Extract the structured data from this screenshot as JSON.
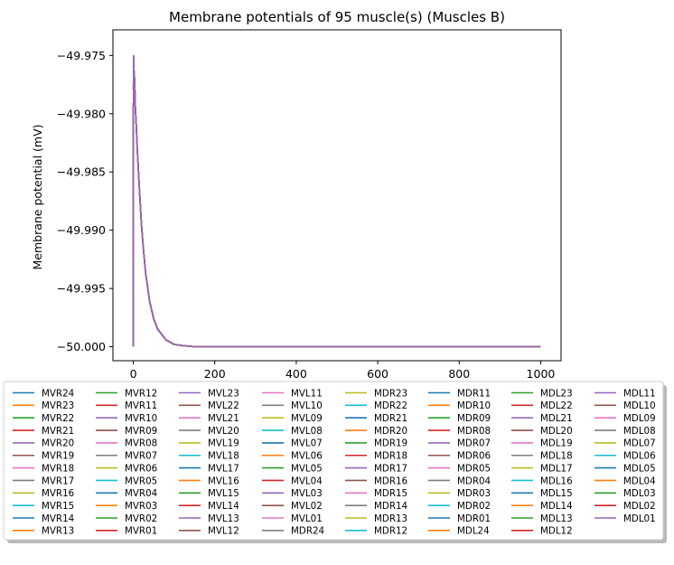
{
  "chart_data": {
    "type": "line",
    "title": "Membrane potentials of 95 muscle(s) (Muscles B)",
    "xlabel": "",
    "ylabel": "Membrane potential (mV)",
    "xlim": [
      -50,
      1050
    ],
    "ylim": [
      -50.0012,
      -49.9728
    ],
    "xticks": [
      0,
      200,
      400,
      600,
      800,
      1000
    ],
    "xtick_labels": [
      "0",
      "200",
      "400",
      "600",
      "800",
      "1000"
    ],
    "yticks": [
      -49.975,
      -49.98,
      -49.985,
      -49.99,
      -49.995,
      -50.0
    ],
    "ytick_labels": [
      "−49.975",
      "−49.980",
      "−49.985",
      "−49.990",
      "−49.995",
      "−50.000"
    ],
    "grid": false,
    "legend_location": "below plot, 8 columns, shadowed frame",
    "colors": [
      "#1f77b4",
      "#ff7f0e",
      "#2ca02c",
      "#d62728",
      "#9467bd",
      "#8c564b",
      "#e377c2",
      "#7f7f7f",
      "#bcbd22",
      "#17becf"
    ],
    "curve": {
      "x": [
        0,
        0.5,
        1,
        2,
        3,
        5,
        7,
        10,
        15,
        20,
        25,
        30,
        40,
        50,
        60,
        80,
        100,
        120,
        150,
        200,
        250,
        300,
        400,
        600,
        800,
        1000
      ],
      "y": [
        -50.0,
        -49.975,
        -49.976,
        -49.9765,
        -49.977,
        -49.9795,
        -49.9808,
        -49.9832,
        -49.9865,
        -49.9895,
        -49.9917,
        -49.9936,
        -49.9961,
        -49.9976,
        -49.9985,
        -49.9994,
        -49.9998,
        -49.9999,
        -50.0,
        -50.0,
        -50.0,
        -50.0,
        -50.0,
        -50.0,
        -50.0,
        -50.0
      ]
    },
    "series": [
      {
        "name": "MVR24"
      },
      {
        "name": "MVR23"
      },
      {
        "name": "MVR22"
      },
      {
        "name": "MVR21"
      },
      {
        "name": "MVR20"
      },
      {
        "name": "MVR19"
      },
      {
        "name": "MVR18"
      },
      {
        "name": "MVR17"
      },
      {
        "name": "MVR16"
      },
      {
        "name": "MVR15"
      },
      {
        "name": "MVR14"
      },
      {
        "name": "MVR13"
      },
      {
        "name": "MVR12"
      },
      {
        "name": "MVR11"
      },
      {
        "name": "MVR10"
      },
      {
        "name": "MVR09"
      },
      {
        "name": "MVR08"
      },
      {
        "name": "MVR07"
      },
      {
        "name": "MVR06"
      },
      {
        "name": "MVR05"
      },
      {
        "name": "MVR04"
      },
      {
        "name": "MVR03"
      },
      {
        "name": "MVR02"
      },
      {
        "name": "MVR01"
      },
      {
        "name": "MVL23"
      },
      {
        "name": "MVL22"
      },
      {
        "name": "MVL21"
      },
      {
        "name": "MVL20"
      },
      {
        "name": "MVL19"
      },
      {
        "name": "MVL18"
      },
      {
        "name": "MVL17"
      },
      {
        "name": "MVL16"
      },
      {
        "name": "MVL15"
      },
      {
        "name": "MVL14"
      },
      {
        "name": "MVL13"
      },
      {
        "name": "MVL12"
      },
      {
        "name": "MVL11"
      },
      {
        "name": "MVL10"
      },
      {
        "name": "MVL09"
      },
      {
        "name": "MVL08"
      },
      {
        "name": "MVL07"
      },
      {
        "name": "MVL06"
      },
      {
        "name": "MVL05"
      },
      {
        "name": "MVL04"
      },
      {
        "name": "MVL03"
      },
      {
        "name": "MVL02"
      },
      {
        "name": "MVL01"
      },
      {
        "name": "MDR24"
      },
      {
        "name": "MDR23"
      },
      {
        "name": "MDR22"
      },
      {
        "name": "MDR21"
      },
      {
        "name": "MDR20"
      },
      {
        "name": "MDR19"
      },
      {
        "name": "MDR18"
      },
      {
        "name": "MDR17"
      },
      {
        "name": "MDR16"
      },
      {
        "name": "MDR15"
      },
      {
        "name": "MDR14"
      },
      {
        "name": "MDR13"
      },
      {
        "name": "MDR12"
      },
      {
        "name": "MDR11"
      },
      {
        "name": "MDR10"
      },
      {
        "name": "MDR09"
      },
      {
        "name": "MDR08"
      },
      {
        "name": "MDR07"
      },
      {
        "name": "MDR06"
      },
      {
        "name": "MDR05"
      },
      {
        "name": "MDR04"
      },
      {
        "name": "MDR03"
      },
      {
        "name": "MDR02"
      },
      {
        "name": "MDR01"
      },
      {
        "name": "MDL24"
      },
      {
        "name": "MDL23"
      },
      {
        "name": "MDL22"
      },
      {
        "name": "MDL21"
      },
      {
        "name": "MDL20"
      },
      {
        "name": "MDL19"
      },
      {
        "name": "MDL18"
      },
      {
        "name": "MDL17"
      },
      {
        "name": "MDL16"
      },
      {
        "name": "MDL15"
      },
      {
        "name": "MDL14"
      },
      {
        "name": "MDL13"
      },
      {
        "name": "MDL12"
      },
      {
        "name": "MDL11"
      },
      {
        "name": "MDL10"
      },
      {
        "name": "MDL09"
      },
      {
        "name": "MDL08"
      },
      {
        "name": "MDL07"
      },
      {
        "name": "MDL06"
      },
      {
        "name": "MDL05"
      },
      {
        "name": "MDL04"
      },
      {
        "name": "MDL03"
      },
      {
        "name": "MDL02"
      },
      {
        "name": "MDL01"
      }
    ]
  }
}
